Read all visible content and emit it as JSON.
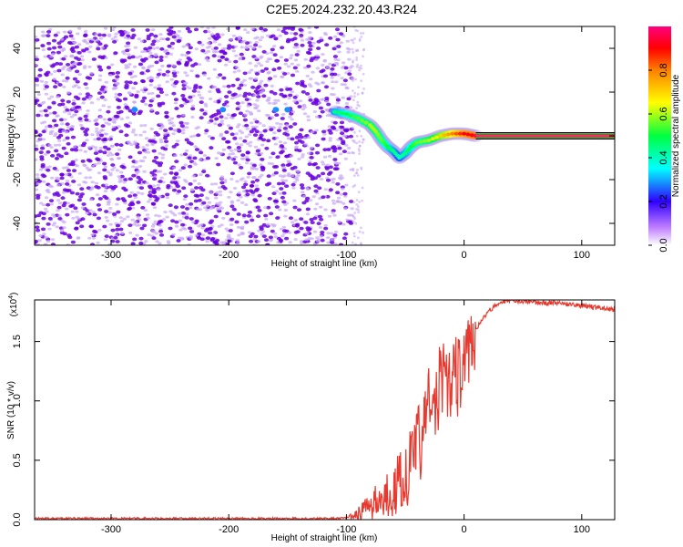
{
  "title": "C2E5.2024.232.20.43.R24",
  "colors": {
    "snr_line": "#e8392f",
    "spectral_dot": "#6a00e0",
    "spectral_faint": "#c8a8f5"
  },
  "chart_data": [
    {
      "type": "heatmap",
      "name": "spectrogram",
      "xlabel": "Height of straight line (km)",
      "ylabel": "Frequency (Hz)",
      "xlim": [
        -365,
        128
      ],
      "ylim": [
        -50,
        50
      ],
      "xticks": [
        "-300",
        "-200",
        "-100",
        "0",
        "100"
      ],
      "yticks": [
        "-40",
        "-20",
        "0",
        "20",
        "40"
      ],
      "colorbar": {
        "label": "Normalized spectral amplitude",
        "ticks": [
          "0.0",
          "0.2",
          "0.4",
          "0.6",
          "0.8"
        ],
        "range": [
          0,
          1
        ]
      },
      "noise_region": {
        "x": [
          -365,
          -95
        ],
        "freq": [
          -50,
          50
        ],
        "amplitude": 0.1
      },
      "signal_track": [
        {
          "x": -110,
          "freq": 11,
          "amp": 0.45
        },
        {
          "x": -100,
          "freq": 10,
          "amp": 0.5
        },
        {
          "x": -90,
          "freq": 8,
          "amp": 0.55
        },
        {
          "x": -80,
          "freq": 5,
          "amp": 0.6
        },
        {
          "x": -75,
          "freq": 2,
          "amp": 0.6
        },
        {
          "x": -70,
          "freq": -2,
          "amp": 0.55
        },
        {
          "x": -65,
          "freq": -5,
          "amp": 0.5
        },
        {
          "x": -60,
          "freq": -7,
          "amp": 0.45
        },
        {
          "x": -55,
          "freq": -10,
          "amp": 0.4
        },
        {
          "x": -50,
          "freq": -8,
          "amp": 0.45
        },
        {
          "x": -45,
          "freq": -5,
          "amp": 0.5
        },
        {
          "x": -40,
          "freq": -3,
          "amp": 0.55
        },
        {
          "x": -30,
          "freq": -2,
          "amp": 0.6
        },
        {
          "x": -20,
          "freq": 0,
          "amp": 0.7
        },
        {
          "x": -10,
          "freq": 1,
          "amp": 0.8
        },
        {
          "x": 0,
          "freq": 1,
          "amp": 0.9
        },
        {
          "x": 10,
          "freq": 0,
          "amp": 0.95
        }
      ],
      "steady_band": {
        "x": [
          10,
          128
        ],
        "freq": 0,
        "amp": 0.95
      }
    },
    {
      "type": "line",
      "name": "snr",
      "xlabel": "Height of straight line (km)",
      "ylabel": "SNR (10 * v/v)",
      "scale_label": "(x10",
      "scale_exp": "4",
      "scale_close": ")",
      "xlim": [
        -365,
        128
      ],
      "ylim": [
        0,
        1.85
      ],
      "xticks": [
        "-300",
        "-200",
        "-100",
        "0",
        "100"
      ],
      "yticks": [
        "0.0",
        "0.5",
        "1.0",
        "1.5"
      ],
      "series": [
        {
          "x": [
            -365,
            -300,
            -200,
            -105,
            -95,
            -85,
            -75,
            -65,
            -55,
            -50,
            -45,
            -40,
            -35,
            -30,
            -25,
            -20,
            -15,
            -10,
            -5,
            0,
            5,
            10,
            20,
            30,
            40,
            60,
            80,
            100,
            128
          ],
          "values": [
            0.01,
            0.01,
            0.01,
            0.01,
            0.03,
            0.08,
            0.15,
            0.22,
            0.3,
            0.4,
            0.45,
            0.6,
            0.7,
            1.0,
            0.9,
            1.2,
            1.1,
            1.25,
            1.2,
            1.35,
            1.4,
            1.6,
            1.75,
            1.83,
            1.85,
            1.83,
            1.82,
            1.8,
            1.77
          ]
        }
      ]
    }
  ]
}
